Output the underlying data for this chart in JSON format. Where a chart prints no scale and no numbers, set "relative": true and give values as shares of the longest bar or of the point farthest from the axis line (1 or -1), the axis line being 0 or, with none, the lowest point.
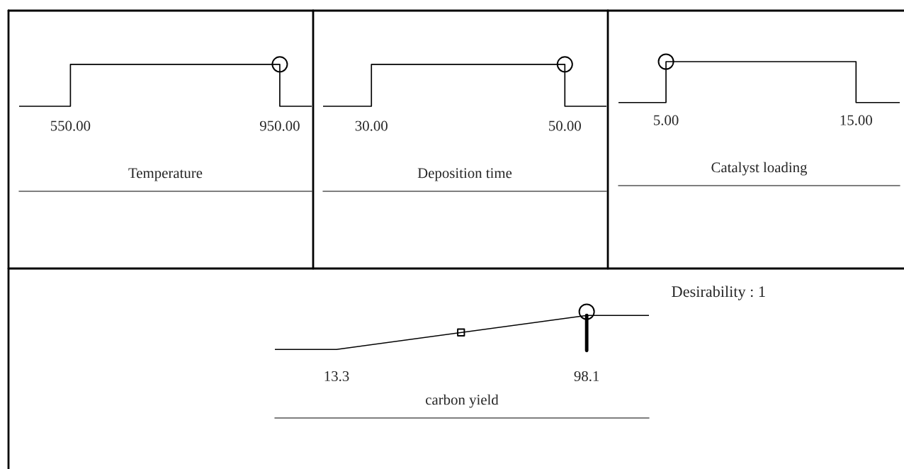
{
  "chart_data": [
    {
      "type": "line",
      "relative": true,
      "xlabel": "Temperature",
      "xlim": [
        452,
        1011
      ],
      "xticks": [
        {
          "value": 550,
          "label": "550.00"
        },
        {
          "value": 950,
          "label": "950.00"
        }
      ],
      "tick_labels": "x",
      "grid": false,
      "legend": false,
      "series": [
        {
          "type": "line",
          "x": [
            452,
            550,
            550,
            950,
            950,
            1011
          ],
          "values": [
            0.67,
            0.67,
            1,
            1,
            0.67,
            0.67
          ],
          "color": "#000000",
          "marker": "none"
        },
        {
          "type": "scatter",
          "x": [
            950
          ],
          "values": [
            1
          ],
          "color": "#000000",
          "marker": "circle"
        }
      ]
    },
    {
      "type": "line",
      "relative": true,
      "xlabel": "Deposition time",
      "xlim": [
        25,
        54.3
      ],
      "xticks": [
        {
          "value": 30,
          "label": "30.00"
        },
        {
          "value": 50,
          "label": "50.00"
        }
      ],
      "tick_labels": "x",
      "grid": false,
      "legend": false,
      "series": [
        {
          "type": "line",
          "x": [
            25,
            30,
            30,
            50,
            50,
            54.3
          ],
          "values": [
            0.67,
            0.67,
            1,
            1,
            0.67,
            0.67
          ],
          "color": "#000000",
          "marker": "none"
        },
        {
          "type": "scatter",
          "x": [
            50
          ],
          "values": [
            1
          ],
          "color": "#000000",
          "marker": "circle"
        }
      ]
    },
    {
      "type": "line",
      "relative": true,
      "xlabel": "Catalyst loading",
      "xlim": [
        2.5,
        17.3
      ],
      "xticks": [
        {
          "value": 5,
          "label": "5.00"
        },
        {
          "value": 15,
          "label": "15.00"
        }
      ],
      "tick_labels": "x",
      "grid": false,
      "legend": false,
      "series": [
        {
          "type": "line",
          "x": [
            2.5,
            5,
            5,
            15,
            15,
            17.3
          ],
          "values": [
            0.67,
            0.67,
            1,
            1,
            0.67,
            0.67
          ],
          "color": "#000000",
          "marker": "none"
        },
        {
          "type": "scatter",
          "x": [
            5
          ],
          "values": [
            1
          ],
          "color": "#000000",
          "marker": "circle"
        }
      ]
    },
    {
      "type": "line",
      "relative": true,
      "xlabel": "carbon yield",
      "xlim": [
        -7.6,
        119.2
      ],
      "xticks": [
        13.3,
        98.1
      ],
      "tick_labels": "x",
      "grid": false,
      "legend": false,
      "annotations": [
        "Desirability : 1"
      ],
      "series": [
        {
          "type": "line",
          "x": [
            -7.6,
            13.3,
            98.1,
            119.2
          ],
          "values": [
            0.645,
            0.645,
            0.965,
            0.965
          ],
          "color": "#000000",
          "marker": "none"
        },
        {
          "type": "scatter",
          "x": [
            55.5
          ],
          "values": [
            0.805
          ],
          "color": "#000000",
          "marker": "square"
        },
        {
          "type": "line",
          "x": [
            98.1,
            98.1
          ],
          "values": [
            0.635,
            0.965
          ],
          "color": "#000000",
          "marker": "none"
        },
        {
          "type": "scatter",
          "x": [
            98.1
          ],
          "values": [
            1
          ],
          "color": "#000000",
          "marker": "circle"
        }
      ]
    }
  ]
}
